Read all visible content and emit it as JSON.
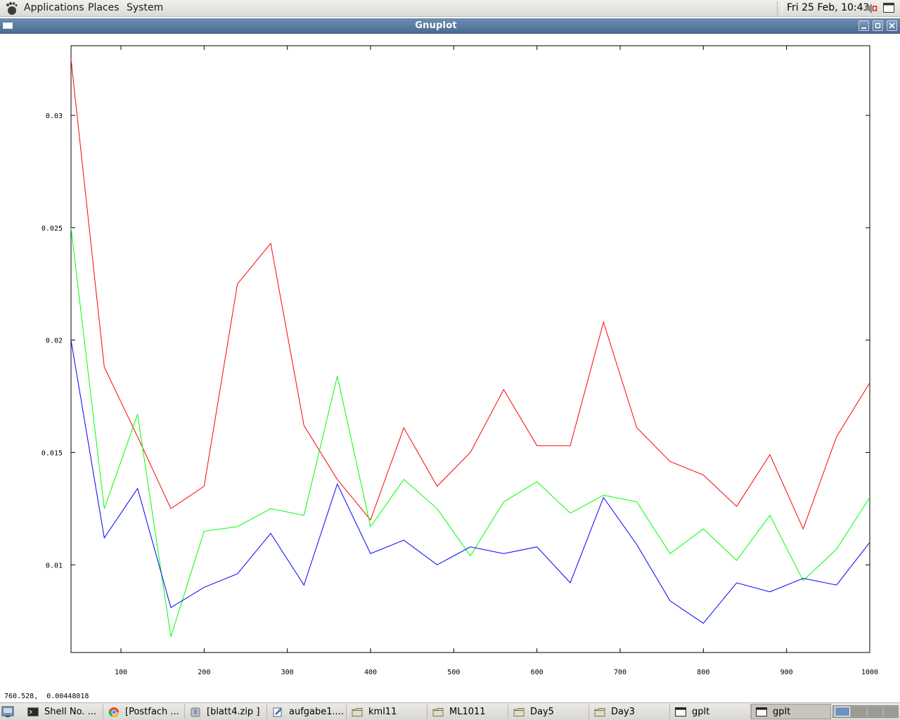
{
  "top_panel": {
    "menus": [
      "Applications",
      "Places",
      "System"
    ],
    "clock": "Fri 25 Feb, 10:43"
  },
  "window": {
    "title": "Gnuplot"
  },
  "status": {
    "coordinates": "760.528,  0.00448018"
  },
  "taskbar": {
    "tasks": [
      {
        "label": "Shell No. ...",
        "icon": "terminal-icon",
        "active": false
      },
      {
        "label": "[Postfach ...",
        "icon": "browser-icon",
        "active": false
      },
      {
        "label": "[blatt4.zip ]",
        "icon": "archive-icon",
        "active": false
      },
      {
        "label": "aufgabe1....",
        "icon": "text-editor-icon",
        "active": false
      },
      {
        "label": "kml11",
        "icon": "folder-icon",
        "active": false
      },
      {
        "label": "ML1011",
        "icon": "folder-icon",
        "active": false
      },
      {
        "label": "Day5",
        "icon": "folder-icon",
        "active": false
      },
      {
        "label": "Day3",
        "icon": "folder-icon",
        "active": false
      },
      {
        "label": "gplt",
        "icon": "window-icon",
        "active": false
      },
      {
        "label": "gplt",
        "icon": "window-icon",
        "active": true
      }
    ],
    "workspaces": 4,
    "active_workspace": 1
  },
  "chart_data": {
    "type": "line",
    "x": [
      40,
      80,
      120,
      160,
      200,
      240,
      280,
      320,
      360,
      400,
      440,
      480,
      520,
      560,
      600,
      640,
      680,
      720,
      760,
      800,
      840,
      880,
      920,
      960,
      1000
    ],
    "xlim": [
      40,
      1000
    ],
    "ylim": [
      0.0061,
      0.0331
    ],
    "xticks": [
      "100",
      "200",
      "300",
      "400",
      "500",
      "600",
      "700",
      "800",
      "900",
      "1000"
    ],
    "yticks": [
      "0.01",
      "0.015",
      "0.02",
      "0.025",
      "0.03"
    ],
    "grid": false,
    "series": [
      {
        "color": "#ff0000",
        "values": [
          0.0325,
          0.0188,
          0.0157,
          0.0125,
          0.0135,
          0.0225,
          0.0243,
          0.0162,
          0.0138,
          0.012,
          0.0161,
          0.0135,
          0.015,
          0.0178,
          0.0153,
          0.0153,
          0.0208,
          0.0161,
          0.0146,
          0.014,
          0.0126,
          0.0149,
          0.0116,
          0.0157,
          0.0181
        ]
      },
      {
        "color": "#00ff00",
        "values": [
          0.025,
          0.0125,
          0.0167,
          0.0068,
          0.0115,
          0.0117,
          0.0125,
          0.0122,
          0.0184,
          0.0117,
          0.0138,
          0.0125,
          0.0104,
          0.0128,
          0.0137,
          0.0123,
          0.0131,
          0.0128,
          0.0105,
          0.0116,
          0.0102,
          0.0122,
          0.0093,
          0.0107,
          0.013
        ]
      },
      {
        "color": "#0000ff",
        "values": [
          0.02,
          0.0112,
          0.0134,
          0.0081,
          0.009,
          0.0096,
          0.0114,
          0.0091,
          0.0136,
          0.0105,
          0.0111,
          0.01,
          0.0108,
          0.0105,
          0.0108,
          0.0092,
          0.013,
          0.0109,
          0.0084,
          0.0074,
          0.0092,
          0.0088,
          0.0094,
          0.0091,
          0.011
        ]
      }
    ]
  }
}
